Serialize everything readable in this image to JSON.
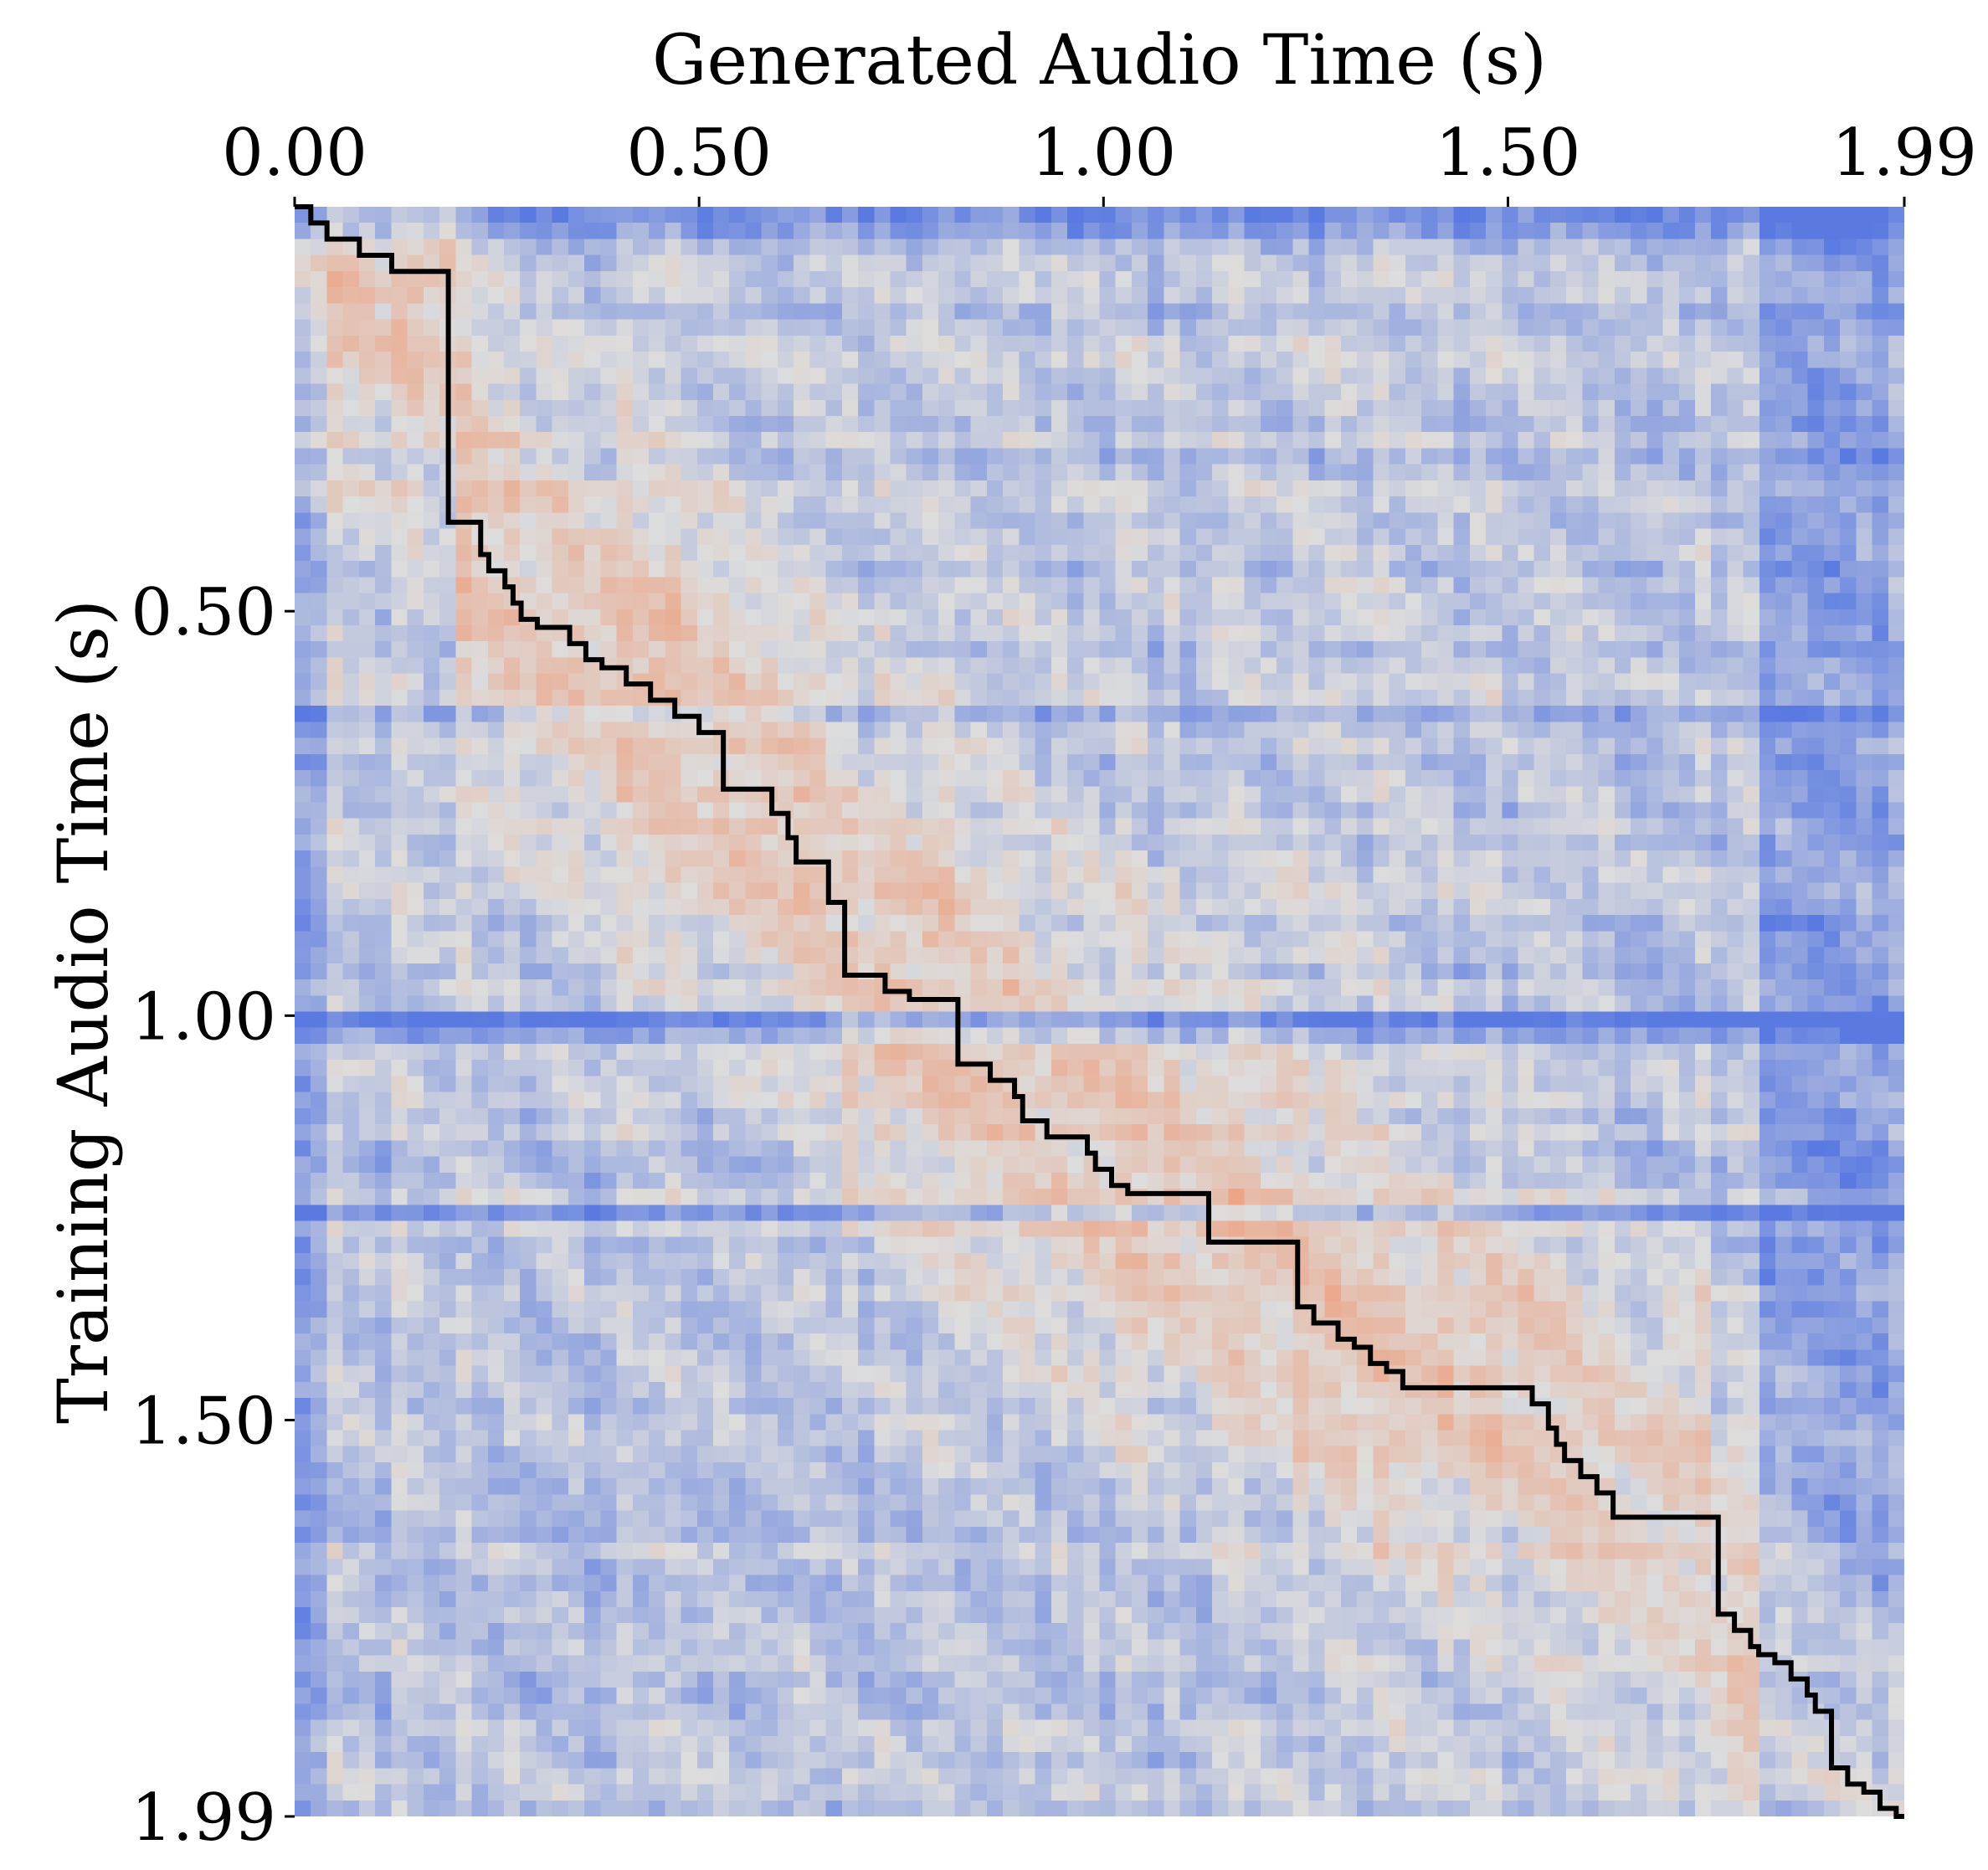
{
  "chart_data": {
    "type": "heatmap",
    "title": "",
    "xlabel": "Generated Audio Time (s)",
    "ylabel": "Training Audio Time (s)",
    "x_axis_position": "top",
    "xlim": [
      0,
      1.99
    ],
    "ylim": [
      0,
      1.99
    ],
    "y_inverted": true,
    "x_ticks": [
      {
        "value": 0.0,
        "label": "0.00"
      },
      {
        "value": 0.5,
        "label": "0.50"
      },
      {
        "value": 1.0,
        "label": "1.00"
      },
      {
        "value": 1.5,
        "label": "1.50"
      },
      {
        "value": 1.99,
        "label": "1.99"
      }
    ],
    "y_ticks": [
      {
        "value": 0.5,
        "label": "0.50"
      },
      {
        "value": 1.0,
        "label": "1.00"
      },
      {
        "value": 1.5,
        "label": "1.50"
      },
      {
        "value": 1.99,
        "label": "1.99"
      }
    ],
    "grid": false,
    "colormap": "coolwarm",
    "colormap_low": "#3b4cc0",
    "colormap_mid": "#dddddd",
    "colormap_high": "#f0956f",
    "n_frames": 100,
    "alignment_path": {
      "color": "#000000",
      "x": [
        0.0,
        0.02,
        0.04,
        0.08,
        0.12,
        0.19,
        0.19,
        0.23,
        0.24,
        0.26,
        0.27,
        0.28,
        0.3,
        0.34,
        0.36,
        0.38,
        0.41,
        0.44,
        0.47,
        0.5,
        0.53,
        0.53,
        0.59,
        0.61,
        0.62,
        0.66,
        0.68,
        0.68,
        0.73,
        0.76,
        0.82,
        0.82,
        0.86,
        0.89,
        0.9,
        0.93,
        0.98,
        0.99,
        1.01,
        1.03,
        1.13,
        1.13,
        1.24,
        1.24,
        1.26,
        1.29,
        1.31,
        1.33,
        1.35,
        1.37,
        1.53,
        1.55,
        1.56,
        1.57,
        1.59,
        1.61,
        1.63,
        1.75,
        1.76,
        1.78,
        1.8,
        1.81,
        1.83,
        1.85,
        1.87,
        1.88,
        1.9,
        1.9,
        1.92,
        1.94,
        1.96,
        1.98,
        1.99
      ],
      "y": [
        0.0,
        0.02,
        0.04,
        0.06,
        0.08,
        0.36,
        0.39,
        0.43,
        0.45,
        0.47,
        0.49,
        0.51,
        0.52,
        0.54,
        0.56,
        0.57,
        0.59,
        0.61,
        0.63,
        0.65,
        0.69,
        0.72,
        0.75,
        0.78,
        0.81,
        0.86,
        0.88,
        0.95,
        0.97,
        0.98,
        1.01,
        1.06,
        1.08,
        1.1,
        1.13,
        1.15,
        1.17,
        1.19,
        1.21,
        1.22,
        1.24,
        1.28,
        1.29,
        1.36,
        1.38,
        1.4,
        1.41,
        1.43,
        1.44,
        1.46,
        1.48,
        1.51,
        1.53,
        1.55,
        1.57,
        1.59,
        1.62,
        1.62,
        1.74,
        1.76,
        1.78,
        1.79,
        1.8,
        1.82,
        1.84,
        1.86,
        1.88,
        1.93,
        1.95,
        1.96,
        1.98,
        1.99,
        1.99
      ]
    }
  }
}
